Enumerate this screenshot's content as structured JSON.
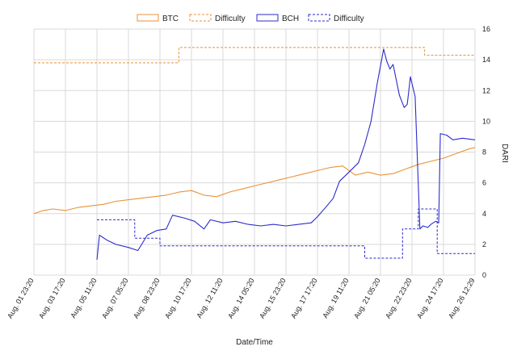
{
  "chart_data": {
    "type": "line",
    "xlabel": "Date/Time",
    "ylabel": "DARI",
    "ylim": [
      0,
      16
    ],
    "y_ticks": [
      0,
      2,
      4,
      6,
      8,
      10,
      12,
      14,
      16
    ],
    "y_axis_side": "right",
    "grid": true,
    "legend_position": "top",
    "x_tick_labels": [
      "Aug. 01 23:20",
      "Aug. 03 17:20",
      "Aug. 05 11:20",
      "Aug. 07 05:20",
      "Aug. 08 23:20",
      "Aug. 10 17:20",
      "Aug. 12 11:20",
      "Aug. 14 05:20",
      "Aug. 15 23:20",
      "Aug. 17 17:20",
      "Aug. 19 11:20",
      "Aug. 21 05:20",
      "Aug. 22 23:20",
      "Aug. 24 17:20",
      "Aug. 26 12:29"
    ],
    "x_range": [
      0,
      14
    ],
    "series": [
      {
        "name": "BTC",
        "color": "#e8923a",
        "dashed": false,
        "x": [
          0,
          0.3,
          0.6,
          1,
          1.4,
          1.8,
          2.2,
          2.6,
          3,
          3.4,
          3.8,
          4.2,
          4.6,
          5,
          5.4,
          5.8,
          6.2,
          6.6,
          7,
          7.4,
          7.8,
          8.2,
          8.6,
          9,
          9.4,
          9.8,
          10.2,
          10.6,
          11,
          11.4,
          11.8,
          12.2,
          12.6,
          13,
          13.4,
          13.8,
          14
        ],
        "values": [
          4.0,
          4.2,
          4.3,
          4.2,
          4.4,
          4.5,
          4.6,
          4.8,
          4.9,
          5.0,
          5.1,
          5.2,
          5.4,
          5.5,
          5.2,
          5.1,
          5.4,
          5.6,
          5.8,
          6.0,
          6.2,
          6.4,
          6.6,
          6.8,
          7.0,
          7.1,
          6.5,
          6.7,
          6.5,
          6.6,
          6.9,
          7.2,
          7.4,
          7.6,
          7.9,
          8.2,
          8.3
        ]
      },
      {
        "name": "Difficulty",
        "color": "#e8923a",
        "dashed": true,
        "x": [
          0,
          4.6,
          4.6,
          11.1,
          11.1,
          11.3,
          11.3,
          12.4,
          12.4,
          14
        ],
        "values": [
          13.8,
          13.8,
          14.8,
          14.8,
          14.8,
          14.8,
          14.8,
          14.8,
          14.3,
          14.3
        ]
      },
      {
        "name": "BCH",
        "color": "#2b2bcc",
        "dashed": false,
        "x": [
          2,
          2.08,
          2.3,
          2.6,
          3.0,
          3.3,
          3.6,
          3.9,
          4.2,
          4.4,
          4.8,
          5.1,
          5.4,
          5.6,
          6.0,
          6.4,
          6.8,
          7.2,
          7.6,
          8.0,
          8.4,
          8.8,
          9.0,
          9.3,
          9.5,
          9.7,
          10.0,
          10.3,
          10.5,
          10.7,
          10.9,
          11.1,
          11.2,
          11.3,
          11.4,
          11.5,
          11.6,
          11.75,
          11.85,
          11.9,
          11.95,
          12.1,
          12.25,
          12.35,
          12.5,
          12.6,
          12.75,
          12.85,
          12.9,
          13.1,
          13.3,
          13.6,
          14
        ],
        "values": [
          1.0,
          2.6,
          2.3,
          2.0,
          1.8,
          1.6,
          2.6,
          2.9,
          3.0,
          3.9,
          3.7,
          3.5,
          3.0,
          3.6,
          3.4,
          3.5,
          3.3,
          3.2,
          3.3,
          3.2,
          3.3,
          3.4,
          3.8,
          4.5,
          5.0,
          6.1,
          6.7,
          7.3,
          8.5,
          10.0,
          12.5,
          14.7,
          13.9,
          13.4,
          13.7,
          12.7,
          11.7,
          10.9,
          11.1,
          12.0,
          12.9,
          11.6,
          3.0,
          3.2,
          3.1,
          3.3,
          3.5,
          3.4,
          9.2,
          9.1,
          8.8,
          8.9,
          8.8
        ]
      },
      {
        "name": "Difficulty",
        "color": "#2b2bcc",
        "dashed": true,
        "x": [
          2,
          3.2,
          3.2,
          4.0,
          4.0,
          10.5,
          10.5,
          11.7,
          11.7,
          12.2,
          12.2,
          12.8,
          12.8,
          14
        ],
        "values": [
          3.6,
          3.6,
          2.4,
          2.4,
          1.9,
          1.9,
          1.1,
          1.1,
          3.0,
          3.0,
          4.3,
          4.3,
          1.4,
          1.4
        ]
      }
    ]
  }
}
